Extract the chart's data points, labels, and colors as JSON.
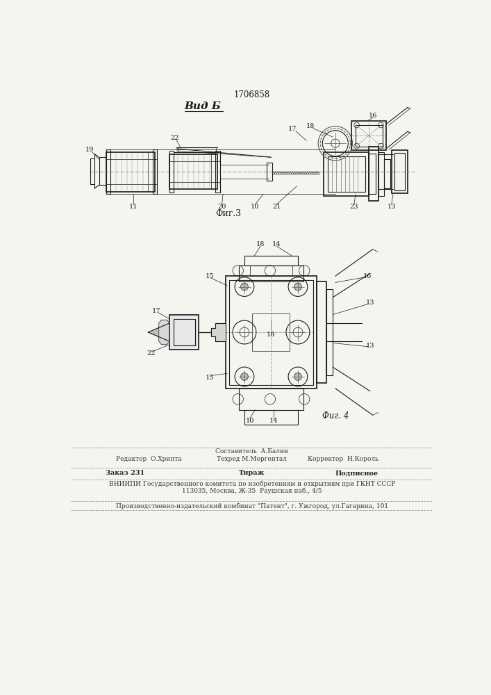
{
  "title_number": "1706858",
  "view_label": "Вид Б",
  "fig3_label": "Фиг.3",
  "fig4_label": "Фиг. 4",
  "footer_col1_line1": "Редактор  О.Хрипта",
  "footer_col2_line1": "Составитель  А.Балин",
  "footer_col2_line2": "Техред М.Моргентал",
  "footer_col3_line2": "Корректор  Н.Король",
  "footer2_col1": "Заказ 231",
  "footer2_col2": "Тираж",
  "footer2_col3": "Подписное",
  "footer3": "ВНИИПИ Государственного комитета по изобретениям и открытиям при ГКНТ СССР",
  "footer4": "113035, Москва, Ж-35  Раушская наб., 4/5",
  "footer5": "Производственно-издательский комбинат \"Патент\", г. Ужгород, ул.Гагарина, 101",
  "bg_color": "#f5f5f0",
  "lc": "#1a1a1a"
}
